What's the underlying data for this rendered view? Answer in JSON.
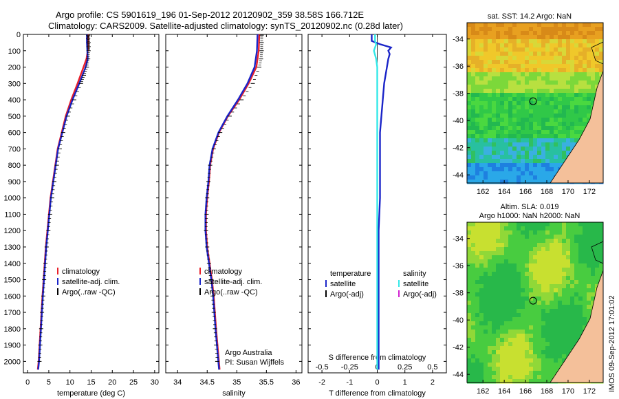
{
  "header": {
    "line1": "Argo profile: CS 5901619_196 01-Sep-2012 20120902_359 38.58S 166.712E",
    "line2": "Climatology: CARS2009. Satellite-adjusted climatology: synTS_20120902.nc (0.28d later)"
  },
  "side_stamp": "IMOS 09-Sep-2012 17:01:02",
  "colors": {
    "climatology": "#e8202a",
    "satellite": "#1a24c8",
    "argo": "#000000",
    "satellite_salinity": "#33e8e8",
    "argo_adj_salinity": "#d020d0",
    "land": "#f4c09a"
  },
  "chart_data": [
    {
      "type": "line",
      "panel": "temperature",
      "xlabel": "temperature (deg C)",
      "xlim": [
        -1,
        31
      ],
      "xticks": [
        0,
        5,
        10,
        15,
        20,
        25,
        30
      ],
      "ylim": [
        2070,
        0
      ],
      "yticks": [
        0,
        100,
        200,
        300,
        400,
        500,
        600,
        700,
        800,
        900,
        1000,
        1100,
        1200,
        1300,
        1400,
        1500,
        1600,
        1700,
        1800,
        1900,
        2000
      ],
      "legend": [
        "climatology",
        "satellite-adj. clim.",
        "Argo(..raw -QC)"
      ],
      "series": [
        {
          "name": "climatology",
          "depth": [
            0,
            50,
            100,
            150,
            200,
            300,
            400,
            500,
            700,
            1000,
            1300,
            1600,
            2000,
            2050
          ],
          "values": [
            14.3,
            14.3,
            14.2,
            13.9,
            13.2,
            11.8,
            10.3,
            9.0,
            7.1,
            5.4,
            4.3,
            3.5,
            2.6,
            2.4
          ]
        },
        {
          "name": "satellite-adj. clim.",
          "depth": [
            0,
            50,
            100,
            150,
            200,
            300,
            400,
            500,
            700,
            1000,
            1300,
            1600,
            2000,
            2050
          ],
          "values": [
            14.0,
            14.0,
            14.1,
            14.2,
            13.7,
            12.2,
            10.6,
            9.2,
            7.2,
            5.5,
            4.4,
            3.6,
            2.7,
            2.5
          ]
        },
        {
          "name": "Argo(..raw -QC)",
          "depth": [
            5,
            25,
            50,
            75,
            100,
            150,
            200,
            250,
            300,
            400,
            500,
            600,
            700,
            800,
            900,
            1000,
            1100,
            1200,
            1300,
            1400,
            1500,
            1600,
            1700,
            1800,
            1900,
            2000
          ],
          "values": [
            14.3,
            14.3,
            14.4,
            14.4,
            14.4,
            14.3,
            14.0,
            13.3,
            12.6,
            11.0,
            9.5,
            8.4,
            7.6,
            6.9,
            6.3,
            5.8,
            5.3,
            4.9,
            4.5,
            4.2,
            3.9,
            3.7,
            3.4,
            3.2,
            3.0,
            2.8
          ]
        }
      ]
    },
    {
      "type": "line",
      "panel": "salinity",
      "xlabel": "salinity",
      "xlim": [
        33.8,
        36.1
      ],
      "xticks": [
        34,
        34.5,
        35,
        35.5,
        36
      ],
      "ylim": [
        2070,
        0
      ],
      "legend": [
        "climatology",
        "satellite-adj. clim.",
        "Argo(..raw -QC)"
      ],
      "annotation": [
        "Argo Australia",
        "PI: Susan Wijffels"
      ],
      "series": [
        {
          "name": "climatology",
          "depth": [
            0,
            100,
            200,
            300,
            400,
            500,
            600,
            700,
            800,
            900,
            1000,
            1100,
            1200,
            1300,
            1400,
            1500,
            1600,
            1800,
            2050
          ],
          "values": [
            35.38,
            35.37,
            35.33,
            35.2,
            35.04,
            34.85,
            34.7,
            34.6,
            34.55,
            34.53,
            34.5,
            34.48,
            34.48,
            34.5,
            34.54,
            34.58,
            34.61,
            34.65,
            34.71
          ]
        },
        {
          "name": "satellite-adj. clim.",
          "depth": [
            0,
            100,
            200,
            300,
            400,
            500,
            600,
            700,
            800,
            900,
            1000,
            1100,
            1200,
            1300,
            1400,
            1500,
            1600,
            1800,
            2050
          ],
          "values": [
            35.35,
            35.34,
            35.3,
            35.18,
            35.02,
            34.84,
            34.69,
            34.59,
            34.54,
            34.52,
            34.49,
            34.47,
            34.47,
            34.49,
            34.53,
            34.57,
            34.6,
            34.64,
            34.7
          ]
        },
        {
          "name": "Argo(..raw -QC)",
          "depth": [
            5,
            50,
            100,
            150,
            200,
            300,
            400,
            500,
            600,
            700,
            800,
            900,
            1000,
            1100,
            1200,
            1300,
            1400,
            1500,
            1600,
            1700,
            1800,
            1900,
            2000
          ],
          "values": [
            35.42,
            35.42,
            35.42,
            35.41,
            35.38,
            35.27,
            35.08,
            34.88,
            34.72,
            34.61,
            34.55,
            34.52,
            34.5,
            34.49,
            34.48,
            34.5,
            34.53,
            34.56,
            34.59,
            34.61,
            34.63,
            34.65,
            34.67
          ]
        }
      ]
    },
    {
      "type": "line",
      "panel": "difference",
      "xlabel": "T difference from climatology",
      "xlabel_top": "S difference from climatology",
      "xlim": [
        -2.5,
        2.5
      ],
      "xticks": [
        -2,
        -1,
        0,
        1,
        2
      ],
      "xticks_s": [
        -0.5,
        -0.25,
        0,
        0.25,
        0.5
      ],
      "xtick_labels_s": [
        "-0.5",
        "-0.25",
        "0",
        "0.25",
        "0.5"
      ],
      "ylim": [
        2070,
        0
      ],
      "legend_groups": [
        {
          "title": "temperature",
          "entries": [
            "satellite",
            "Argo(-adj)"
          ]
        },
        {
          "title": "salinity",
          "entries": [
            "satellite",
            "Argo(-adj)"
          ]
        }
      ],
      "series": [
        {
          "name": "satellite",
          "group": "temperature",
          "depth": [
            0,
            40,
            60,
            80,
            100,
            120,
            150,
            200,
            250,
            300,
            400,
            500,
            600,
            800,
            1000,
            1200,
            1500,
            2000,
            2050
          ],
          "values": [
            -0.2,
            -0.2,
            0.1,
            0.5,
            0.4,
            0.45,
            0.4,
            0.35,
            0.3,
            0.25,
            0.2,
            0.15,
            0.1,
            0.1,
            0.1,
            0.05,
            0.05,
            0.05,
            0.05
          ]
        },
        {
          "name": "satellite",
          "group": "salinity",
          "depth": [
            0,
            40,
            60,
            80,
            100,
            150,
            200,
            300,
            400,
            600,
            800,
            1000,
            1500,
            2050
          ],
          "values": [
            -0.02,
            -0.02,
            -0.01,
            -0.02,
            -0.03,
            -0.01,
            0.0,
            0.0,
            0.0,
            0.0,
            0.0,
            0.0,
            0.0,
            0.0
          ]
        }
      ]
    },
    {
      "type": "heatmap",
      "panel": "map-sst",
      "title": "sat. SST: 14.2  Argo: NaN",
      "xlim": [
        160.5,
        173.3
      ],
      "ylim": [
        -44.6,
        -32.8
      ],
      "xticks": [
        162,
        164,
        166,
        168,
        170,
        172
      ],
      "yticks": [
        -34,
        -36,
        -38,
        -40,
        -42,
        -44
      ],
      "marker": {
        "lon": 166.712,
        "lat": -38.58
      }
    },
    {
      "type": "heatmap",
      "panel": "map-sla",
      "title": [
        "Altim. SLA: 0.019",
        "Argo h1000: NaN h2000: NaN"
      ],
      "xlim": [
        160.5,
        173.3
      ],
      "ylim": [
        -44.6,
        -32.8
      ],
      "xticks": [
        162,
        164,
        166,
        168,
        170,
        172
      ],
      "yticks": [
        -34,
        -36,
        -38,
        -40,
        -42,
        -44
      ],
      "marker": {
        "lon": 166.712,
        "lat": -38.58
      }
    }
  ]
}
